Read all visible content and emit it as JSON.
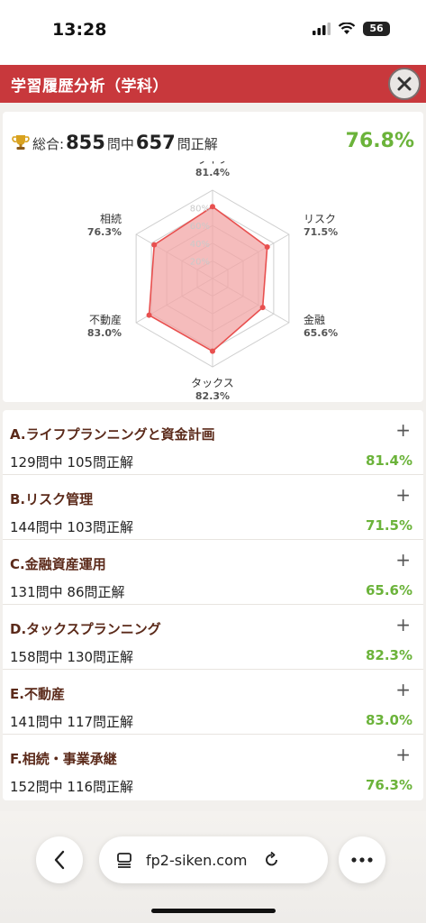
{
  "status": {
    "time": "13:28",
    "battery": "56"
  },
  "header": {
    "title": "学習履歴分析（学科）"
  },
  "summary": {
    "prefix": "総合:",
    "total": "855",
    "mid": "問中",
    "correct": "657",
    "suffix": "問正解",
    "percent": "76.8%"
  },
  "chart_data": {
    "type": "radar",
    "categories": [
      "ライフ",
      "リスク",
      "金融",
      "タックス",
      "不動産",
      "相続"
    ],
    "values": [
      81.4,
      71.5,
      65.6,
      82.3,
      83.0,
      76.3
    ],
    "value_labels": [
      "81.4%",
      "71.5%",
      "65.6%",
      "82.3%",
      "83.0%",
      "76.3%"
    ],
    "rlim": [
      0,
      100
    ],
    "ring_labels": [
      "20%",
      "40%",
      "60%",
      "80%"
    ],
    "colors": {
      "fill": "#f2a5a5",
      "stroke": "#e8504f",
      "grid": "#cfcfcf"
    }
  },
  "categories": [
    {
      "title": "A.ライフプランニングと資金計画",
      "detail": "129問中 105問正解",
      "percent": "81.4%"
    },
    {
      "title": "B.リスク管理",
      "detail": "144問中 103問正解",
      "percent": "71.5%"
    },
    {
      "title": "C.金融資産運用",
      "detail": "131問中 86問正解",
      "percent": "65.6%"
    },
    {
      "title": "D.タックスプランニング",
      "detail": "158問中 130問正解",
      "percent": "82.3%"
    },
    {
      "title": "E.不動産",
      "detail": "141問中 117問正解",
      "percent": "83.0%"
    },
    {
      "title": "F.相続・事業承継",
      "detail": "152問中 116問正解",
      "percent": "76.3%"
    }
  ],
  "expand_symbol": "+",
  "browser": {
    "url": "fp2-siken.com"
  },
  "colors": {
    "accent": "#c8383c",
    "success": "#6bb33a",
    "category_title": "#5b2a1a"
  }
}
